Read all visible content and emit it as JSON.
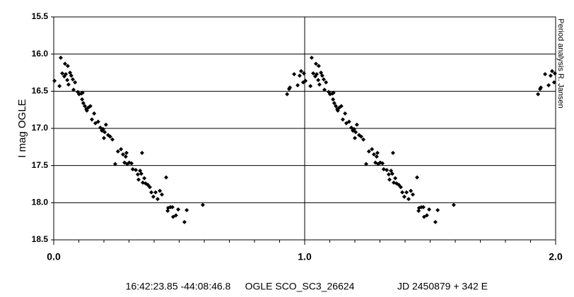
{
  "chart_data": {
    "type": "scatter",
    "y_label": "I mag OGLE",
    "annotations": [
      "16:42:23.85 -44:08:46.8",
      "OGLE SCO_SC3_26624",
      "JD 2450879 + 342 E"
    ],
    "side_note": "Period analysis R. Jansen",
    "color": "#000000",
    "marker": "diamond",
    "y_inverted": true,
    "grid": true,
    "xlim": [
      0,
      2
    ],
    "ylim": [
      15.5,
      18.5
    ],
    "xticks": [
      {
        "value": 0,
        "label": "0.0"
      },
      {
        "value": 1,
        "label": "1.0"
      },
      {
        "value": 2,
        "label": "2.0"
      }
    ],
    "xminorticks": [
      0.1,
      0.2,
      0.3,
      0.4,
      0.5,
      0.6,
      0.7,
      0.8,
      0.9,
      1.1,
      1.2,
      1.3,
      1.4,
      1.5,
      1.6,
      1.7,
      1.8,
      1.9
    ],
    "yticks": [
      15.5,
      {
        "value": 16,
        "label": "16.0"
      },
      16.5,
      {
        "value": 17,
        "label": "17.0"
      },
      17.5,
      {
        "value": 18,
        "label": "18.0"
      },
      18.5
    ],
    "x": [
      0.003,
      0.023,
      0.028,
      0.034,
      0.042,
      0.045,
      0.048,
      0.054,
      0.056,
      0.059,
      0.065,
      0.07,
      0.076,
      0.079,
      0.085,
      0.096,
      0.101,
      0.11,
      0.115,
      0.113,
      0.118,
      0.124,
      0.13,
      0.132,
      0.138,
      0.146,
      0.152,
      0.161,
      0.166,
      0.177,
      0.186,
      0.192,
      0.197,
      0.203,
      0.2,
      0.208,
      0.217,
      0.225,
      0.234,
      0.245,
      0.256,
      0.268,
      0.276,
      0.282,
      0.287,
      0.29,
      0.293,
      0.301,
      0.31,
      0.315,
      0.327,
      0.335,
      0.338,
      0.344,
      0.349,
      0.352,
      0.355,
      0.361,
      0.366,
      0.375,
      0.383,
      0.389,
      0.397,
      0.406,
      0.414,
      0.423,
      0.431,
      0.448,
      0.454,
      0.456,
      0.465,
      0.473,
      0.476,
      0.487,
      0.496,
      0.521,
      0.53,
      0.594,
      0.93,
      0.938,
      0.941,
      0.958,
      0.972,
      0.98,
      0.986,
      0.994,
      0.997,
      1.003,
      1.023,
      1.028,
      1.034,
      1.042,
      1.045,
      1.048,
      1.054,
      1.056,
      1.059,
      1.065,
      1.07,
      1.076,
      1.079,
      1.085,
      1.096,
      1.101,
      1.11,
      1.115,
      1.113,
      1.118,
      1.124,
      1.13,
      1.132,
      1.138,
      1.146,
      1.152,
      1.161,
      1.166,
      1.177,
      1.186,
      1.192,
      1.197,
      1.203,
      1.2,
      1.208,
      1.217,
      1.225,
      1.234,
      1.245,
      1.256,
      1.268,
      1.276,
      1.282,
      1.287,
      1.29,
      1.293,
      1.301,
      1.31,
      1.315,
      1.327,
      1.335,
      1.338,
      1.344,
      1.349,
      1.352,
      1.355,
      1.361,
      1.366,
      1.375,
      1.383,
      1.389,
      1.397,
      1.406,
      1.414,
      1.423,
      1.431,
      1.448,
      1.454,
      1.456,
      1.465,
      1.473,
      1.476,
      1.487,
      1.496,
      1.521,
      1.53,
      1.594,
      1.93,
      1.938,
      1.941,
      1.958,
      1.972,
      1.98,
      1.986,
      1.994,
      1.997
    ],
    "values": [
      16.36,
      16.43,
      16.05,
      16.26,
      16.3,
      16.13,
      16.27,
      16.35,
      16.16,
      16.41,
      16.25,
      16.29,
      16.34,
      16.48,
      16.38,
      16.51,
      16.54,
      16.53,
      16.52,
      16.61,
      16.66,
      16.7,
      16.74,
      16.76,
      16.72,
      16.7,
      16.88,
      16.8,
      16.93,
      16.91,
      16.99,
      17.03,
      17.01,
      17.05,
      17.13,
      16.95,
      17.09,
      17.11,
      17.15,
      17.48,
      17.31,
      17.28,
      17.35,
      17.46,
      17.38,
      17.33,
      17.48,
      17.46,
      17.47,
      17.55,
      17.56,
      17.62,
      17.69,
      17.57,
      17.61,
      17.33,
      17.73,
      17.67,
      17.74,
      17.76,
      17.79,
      17.86,
      17.92,
      17.86,
      17.95,
      17.84,
      17.89,
      17.66,
      18.11,
      18.07,
      18.06,
      18.06,
      18.19,
      18.17,
      18.09,
      18.26,
      18.1,
      18.03,
      16.54,
      16.47,
      16.45,
      16.27,
      16.42,
      16.29,
      16.23,
      16.38,
      16.26,
      16.36,
      16.43,
      16.05,
      16.26,
      16.3,
      16.13,
      16.27,
      16.35,
      16.16,
      16.41,
      16.25,
      16.29,
      16.34,
      16.48,
      16.38,
      16.51,
      16.54,
      16.53,
      16.52,
      16.61,
      16.66,
      16.7,
      16.74,
      16.76,
      16.72,
      16.7,
      16.88,
      16.8,
      16.93,
      16.91,
      16.99,
      17.03,
      17.01,
      17.05,
      17.13,
      16.95,
      17.09,
      17.11,
      17.15,
      17.48,
      17.31,
      17.28,
      17.35,
      17.46,
      17.38,
      17.33,
      17.48,
      17.46,
      17.47,
      17.55,
      17.56,
      17.62,
      17.69,
      17.57,
      17.61,
      17.33,
      17.73,
      17.67,
      17.74,
      17.76,
      17.79,
      17.86,
      17.92,
      17.86,
      17.95,
      17.84,
      17.89,
      17.66,
      18.11,
      18.07,
      18.06,
      18.06,
      18.19,
      18.17,
      18.09,
      18.26,
      18.1,
      18.03,
      16.54,
      16.47,
      16.45,
      16.27,
      16.42,
      16.29,
      16.23,
      16.38,
      16.26
    ]
  }
}
